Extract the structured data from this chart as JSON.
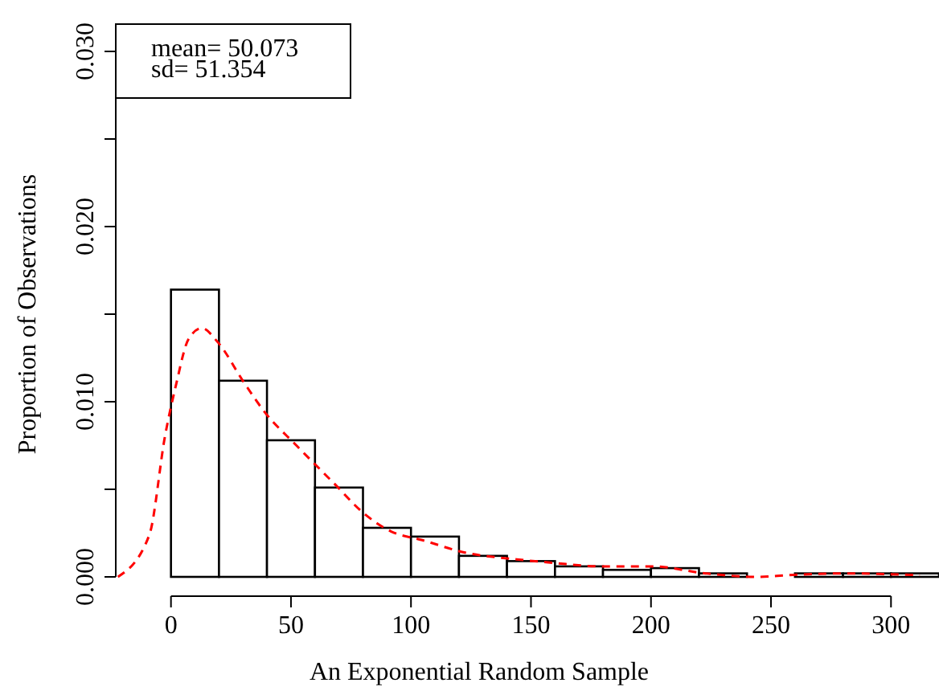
{
  "chart_data": {
    "type": "histogram",
    "xlabel": "An Exponential Random Sample",
    "ylabel": "Proportion of Observations",
    "annotations": [
      "mean= 50.073",
      "sd= 51.354"
    ],
    "bins": [
      0,
      20,
      40,
      60,
      80,
      100,
      120,
      140,
      160,
      180,
      200,
      220,
      240,
      260,
      280,
      300,
      320
    ],
    "values": [
      0.0164,
      0.0112,
      0.0078,
      0.0051,
      0.0028,
      0.0023,
      0.0012,
      0.0009,
      0.0006,
      0.0004,
      0.0005,
      0.0002,
      0,
      0.0002,
      0.0002,
      0.0002
    ],
    "color": "#ffffff",
    "series": [
      {
        "type": "line",
        "color": "#ff0000",
        "line_style": "dashed",
        "x": [
          -22.1,
          -9,
          -2.4,
          2,
          7.4,
          12.9,
          19.5,
          30.4,
          39.1,
          52.3,
          67.5,
          80.6,
          91.6,
          104.7,
          122.1,
          144,
          159.3,
          179,
          200.6,
          222.7,
          244.5,
          257.6,
          279.3,
          312
        ],
        "values": [
          0,
          0.0024,
          0.0081,
          0.0109,
          0.0136,
          0.0142,
          0.0134,
          0.0111,
          0.0094,
          0.0075,
          0.0054,
          0.0036,
          0.0026,
          0.0021,
          0.0014,
          0.001,
          0.0008,
          0.0006,
          0.0006,
          0.0002,
          0,
          0.0001,
          0.0002,
          0.0001
        ]
      }
    ],
    "xlim": [
      -23,
      320
    ],
    "ylim": [
      0,
      0.03
    ],
    "xticks": [
      0,
      50,
      100,
      150,
      200,
      250,
      300
    ],
    "yticks": [
      {
        "value": 0,
        "label": "0.000"
      },
      {
        "value": 0.005,
        "label": null
      },
      {
        "value": 0.01,
        "label": "0.010"
      },
      {
        "value": 0.015,
        "label": null
      },
      {
        "value": 0.02,
        "label": "0.020"
      },
      {
        "value": 0.025,
        "label": null
      },
      {
        "value": 0.03,
        "label": "0.030"
      }
    ],
    "grid": false
  }
}
